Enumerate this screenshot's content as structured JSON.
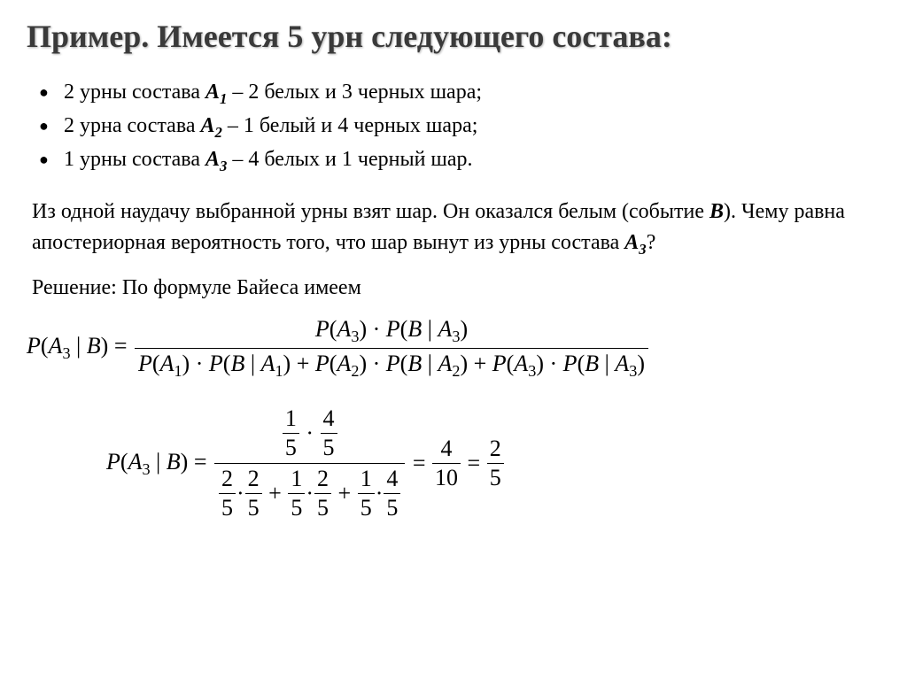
{
  "title": "Пример. Имеется 5 урн следующего состава:",
  "bullets": [
    {
      "prefix": "2 урны состава ",
      "var": "A",
      "sub": "1",
      "suffix": " – 2 белых и 3 черных шара;"
    },
    {
      "prefix": "2 урна состава ",
      "var": "A",
      "sub": "2",
      "suffix": " – 1 белый и 4 черных шара;"
    },
    {
      "prefix": "1 урны состава ",
      "var": "A",
      "sub": "3",
      "suffix": " – 4 белых и 1 черный шар."
    }
  ],
  "problem_parts": {
    "p1": "Из одной наудачу выбранной урны взят шар. Он оказался белым (событие ",
    "ev": "B",
    "p2": "). Чему равна апостериорная вероятность того, что шар вынут из урны состава ",
    "var": "A",
    "sub": "3",
    "p3": "?"
  },
  "solution_intro": "Решение: По формуле Байеса имеем",
  "formula1": {
    "lhs_P": "P",
    "lhs_A": "A",
    "lhs_Asub": "3",
    "lhs_bar": " | ",
    "lhs_B": "B",
    "eq": " = ",
    "num": {
      "P": "P",
      "A": "A",
      "A3": "3",
      "dot": " · ",
      "B": "B"
    },
    "den_terms": [
      {
        "Asub": "1"
      },
      {
        "Asub": "2"
      },
      {
        "Asub": "3"
      }
    ],
    "plus": " + "
  },
  "formula2": {
    "lhs_P": "P",
    "lhs_A": "A",
    "lhs_Asub": "3",
    "lhs_bar": " | ",
    "lhs_B": "B",
    "eq": " = ",
    "num_fracs": [
      {
        "n": "1",
        "d": "5"
      },
      {
        "n": "4",
        "d": "5"
      }
    ],
    "num_dot": "·",
    "den_groups": [
      {
        "a": {
          "n": "2",
          "d": "5"
        },
        "b": {
          "n": "2",
          "d": "5"
        }
      },
      {
        "a": {
          "n": "1",
          "d": "5"
        },
        "b": {
          "n": "2",
          "d": "5"
        }
      },
      {
        "a": {
          "n": "1",
          "d": "5"
        },
        "b": {
          "n": "4",
          "d": "5"
        }
      }
    ],
    "den_dot": "·",
    "den_plus": " + ",
    "result1": {
      "n": "4",
      "d": "10"
    },
    "result2": {
      "n": "2",
      "d": "5"
    }
  },
  "styling": {
    "title_color": "#3a3a3a",
    "title_fontsize": 36,
    "body_fontsize": 24,
    "formula_fontsize": 26,
    "background": "#ffffff",
    "text_color": "#000000",
    "font_family": "Times New Roman"
  }
}
